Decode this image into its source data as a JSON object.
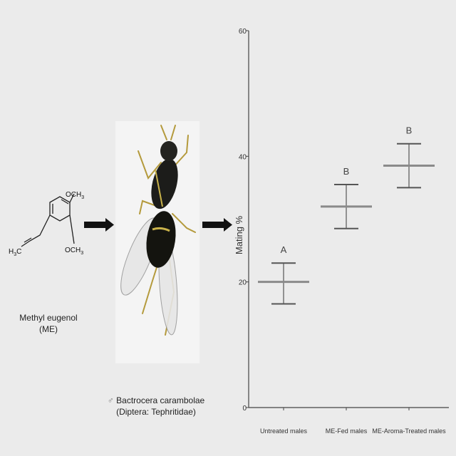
{
  "molecule": {
    "name_line1": "Methyl eugenol",
    "name_line2": "(ME)",
    "group_top": "OCH",
    "group_top_sub": "3",
    "group_bottom": "OCH",
    "group_bottom_sub": "3",
    "h3c": "H",
    "h3c_sub": "3",
    "h3c_c": "C"
  },
  "insect": {
    "symbol": "♂",
    "name": "Bactrocera carambolae",
    "taxon": "(Diptera: Tephritidae)"
  },
  "chart_data": {
    "type": "interval",
    "ylabel": "Mating %",
    "ylim": [
      0,
      60
    ],
    "yticks": [
      0,
      20,
      40,
      60
    ],
    "categories": [
      "Untreated males",
      "ME-Fed males",
      "ME-Aroma-Treated males"
    ],
    "mean": [
      20,
      32,
      38.5
    ],
    "upper": [
      23,
      35.5,
      42
    ],
    "lower": [
      16.5,
      28.5,
      35
    ],
    "group_labels": [
      "A",
      "B",
      "B"
    ],
    "colors": {
      "mean": "#8a8a8a",
      "error": "#555555",
      "axis": "#444444"
    }
  }
}
